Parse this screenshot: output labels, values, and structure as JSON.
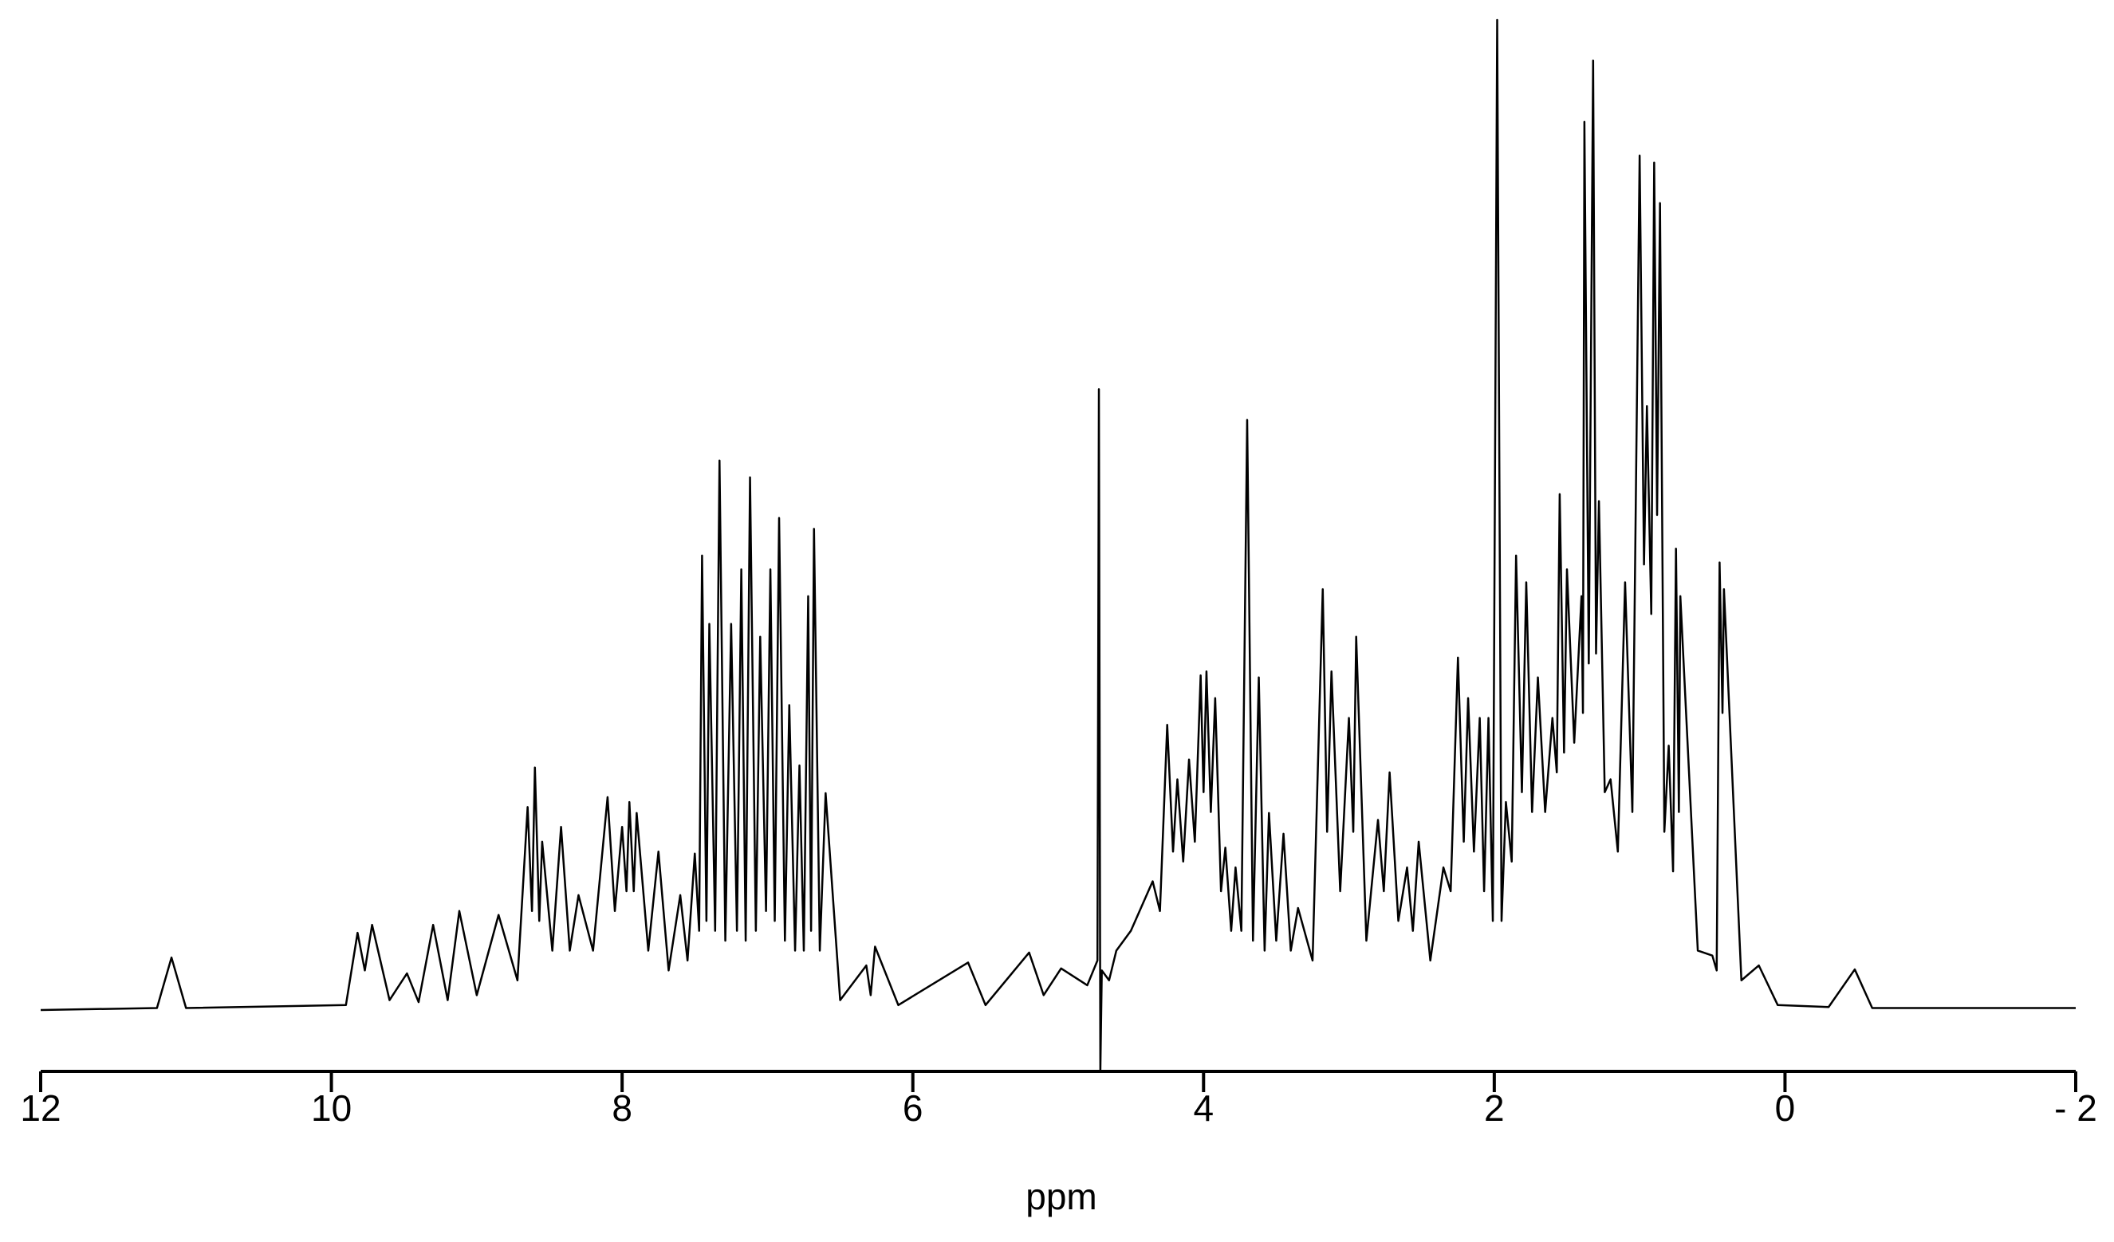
{
  "chart_data": {
    "type": "line",
    "xlabel": "ppm",
    "xlim": [
      12,
      -2
    ],
    "xticks": [
      12,
      10,
      8,
      6,
      4,
      2,
      0,
      {
        "value": -2,
        "label": "- 2"
      }
    ],
    "ylim": [
      -6.2,
      100
    ],
    "series": [
      {
        "color": "#000000",
        "x": [
          12,
          11.2,
          11.1,
          11.0,
          9.9,
          9.82,
          9.77,
          9.72,
          9.6,
          9.48,
          9.4,
          9.3,
          9.2,
          9.12,
          9.0,
          8.85,
          8.72,
          8.65,
          8.62,
          8.6,
          8.57,
          8.55,
          8.48,
          8.42,
          8.36,
          8.3,
          8.2,
          8.1,
          8.05,
          8.0,
          7.97,
          7.95,
          7.92,
          7.9,
          7.82,
          7.75,
          7.68,
          7.6,
          7.55,
          7.5,
          7.47,
          7.45,
          7.42,
          7.4,
          7.36,
          7.33,
          7.29,
          7.25,
          7.21,
          7.18,
          7.15,
          7.12,
          7.08,
          7.05,
          7.01,
          6.98,
          6.95,
          6.92,
          6.88,
          6.85,
          6.81,
          6.78,
          6.75,
          6.72,
          6.7,
          6.68,
          6.64,
          6.6,
          6.5,
          6.32,
          6.29,
          6.26,
          6.1,
          5.62,
          5.5,
          5.2,
          5.1,
          4.98,
          4.8,
          4.73,
          4.72,
          4.71,
          4.7,
          4.65,
          4.6,
          4.5,
          4.35,
          4.3,
          4.25,
          4.21,
          4.18,
          4.14,
          4.1,
          4.06,
          4.02,
          4.0,
          3.98,
          3.95,
          3.92,
          3.88,
          3.85,
          3.81,
          3.78,
          3.74,
          3.7,
          3.66,
          3.62,
          3.58,
          3.55,
          3.5,
          3.45,
          3.4,
          3.35,
          3.25,
          3.18,
          3.15,
          3.12,
          3.06,
          3.0,
          2.97,
          2.95,
          2.88,
          2.8,
          2.76,
          2.72,
          2.66,
          2.6,
          2.56,
          2.52,
          2.44,
          2.35,
          2.3,
          2.25,
          2.21,
          2.18,
          2.14,
          2.1,
          2.07,
          2.04,
          2.01,
          1.98,
          1.95,
          1.92,
          1.88,
          1.85,
          1.81,
          1.78,
          1.74,
          1.7,
          1.65,
          1.6,
          1.57,
          1.55,
          1.52,
          1.5,
          1.45,
          1.4,
          1.39,
          1.38,
          1.35,
          1.32,
          1.3,
          1.28,
          1.24,
          1.2,
          1.15,
          1.1,
          1.05,
          1.0,
          0.97,
          0.95,
          0.92,
          0.9,
          0.88,
          0.86,
          0.83,
          0.8,
          0.77,
          0.75,
          0.73,
          0.72,
          0.6,
          0.5,
          0.47,
          0.45,
          0.43,
          0.42,
          0.3,
          0.18,
          0.05,
          -0.3,
          -0.48,
          -0.6,
          -2
        ],
        "values": [
          0,
          0.2,
          5.3,
          0.2,
          0.5,
          7.8,
          4,
          8.6,
          1,
          3.7,
          0.8,
          8.6,
          1,
          10,
          1.5,
          9.6,
          3,
          20.5,
          10,
          24.5,
          9,
          17,
          6,
          18.5,
          6,
          11.6,
          6,
          21.5,
          10,
          18.5,
          12,
          21,
          12,
          19.9,
          6,
          16,
          4,
          11.6,
          5,
          15.8,
          8,
          45.9,
          9,
          39,
          8,
          55.5,
          7,
          39,
          8,
          44.5,
          7,
          53.8,
          8,
          37.7,
          10,
          44.5,
          9,
          49.7,
          7,
          30.8,
          6,
          24.7,
          6,
          41.8,
          8,
          48.6,
          6,
          21.9,
          1,
          4.5,
          1.5,
          6.4,
          0.5,
          4.8,
          0.5,
          5.8,
          1.5,
          4.2,
          2.5,
          5,
          62.7,
          -6.2,
          4,
          3,
          6,
          8,
          13,
          10,
          28.8,
          16,
          23.3,
          15,
          25.3,
          17,
          33.8,
          22,
          34.2,
          20,
          31.5,
          12,
          16.4,
          8,
          14.4,
          8,
          59.6,
          7,
          33.6,
          6,
          19.9,
          7,
          17.8,
          6,
          10.3,
          5,
          42.5,
          18,
          34.2,
          12,
          29.5,
          18,
          37.7,
          7,
          19.2,
          12,
          24,
          9,
          14.4,
          8,
          17,
          5,
          14.4,
          12,
          35.6,
          17,
          31.5,
          16,
          29.5,
          12,
          29.5,
          9,
          100,
          9,
          21,
          15,
          45.9,
          22,
          43.2,
          20,
          33.6,
          20,
          29.5,
          24,
          52.1,
          26,
          44.5,
          27,
          41.8,
          30,
          89.7,
          35,
          95.9,
          36,
          51.4,
          22,
          23.3,
          16,
          43.2,
          20,
          86.3,
          45,
          61,
          40,
          85.6,
          50,
          81.5,
          18,
          26.7,
          14,
          46.6,
          20,
          41.8,
          6,
          5.5,
          4,
          45.2,
          30,
          42.5,
          3,
          4.5,
          0.5,
          0.3,
          4.1,
          0.2,
          0.2
        ]
      }
    ]
  }
}
